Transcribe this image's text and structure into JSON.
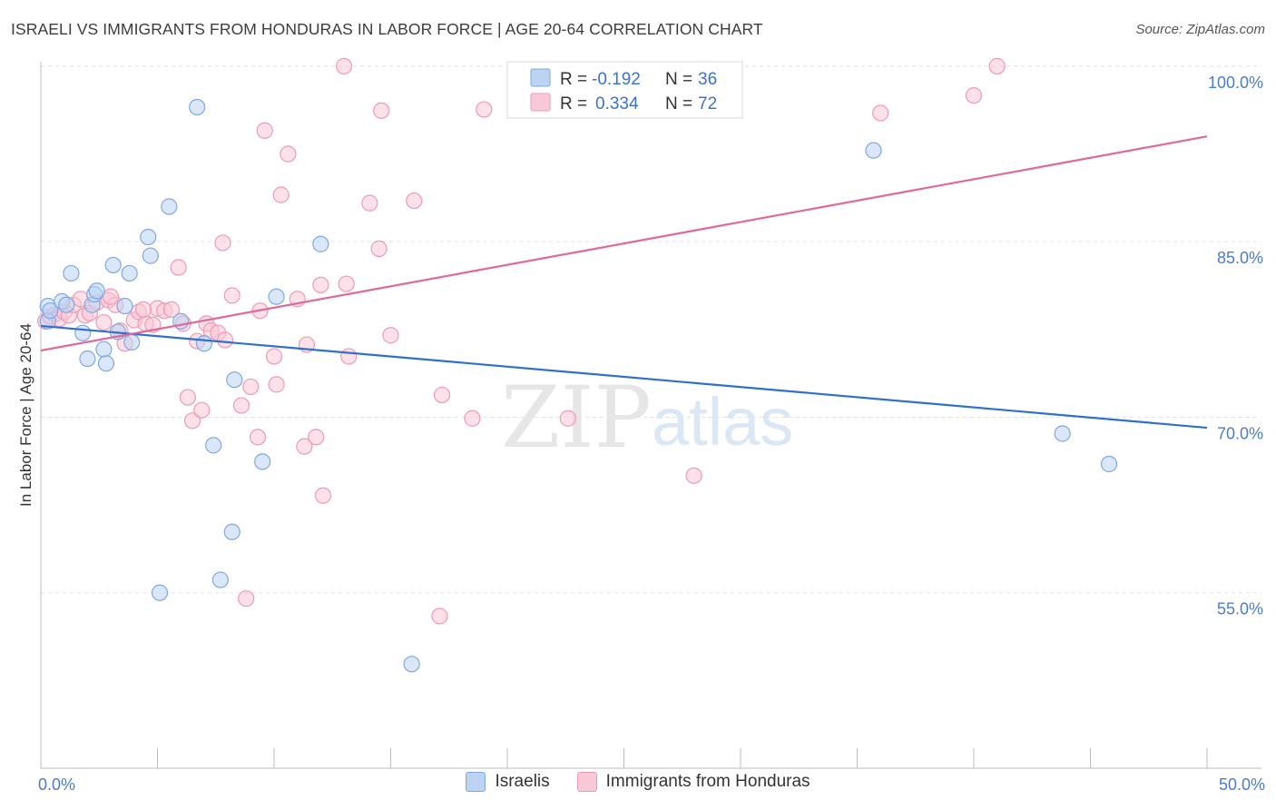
{
  "header": {
    "title": "ISRAELI VS IMMIGRANTS FROM HONDURAS IN LABOR FORCE | AGE 20-64 CORRELATION CHART",
    "source": "Source: ZipAtlas.com"
  },
  "watermark": {
    "zip": "ZIP",
    "atlas": "atlas"
  },
  "colors": {
    "israelis_fill": "#bcd4f2",
    "israelis_stroke": "#7fa8e0",
    "israelis_line": "#2f6fce",
    "honduras_fill": "#f9c8d7",
    "honduras_stroke": "#ee9ab3",
    "honduras_line": "#e0699a",
    "tick_label": "#4b7bd0",
    "grid": "#e3e3e3"
  },
  "legend": {
    "rows": [
      {
        "r_label": "R =",
        "r_value": "-0.192",
        "n_label": "N =",
        "n_value": "36"
      },
      {
        "r_label": "R =",
        "r_value": "0.334",
        "n_label": "N =",
        "n_value": "72"
      }
    ]
  },
  "chart_data": {
    "type": "scatter",
    "title": "ISRAELI VS IMMIGRANTS FROM HONDURAS IN LABOR FORCE | AGE 20-64 CORRELATION CHART",
    "xlabel": "",
    "ylabel": "In Labor Force | Age 20-64",
    "xlim": [
      0,
      50
    ],
    "ylim": [
      40,
      101
    ],
    "x_tick_labels": [
      {
        "value": 0,
        "label": "0.0%"
      },
      {
        "value": 50,
        "label": "50.0%"
      }
    ],
    "y_tick_labels": [
      {
        "value": 100,
        "label": "100.0%"
      },
      {
        "value": 85,
        "label": "85.0%"
      },
      {
        "value": 70,
        "label": "70.0%"
      },
      {
        "value": 55,
        "label": "55.0%"
      }
    ],
    "grid": true,
    "legend_position": "bottom",
    "series": [
      {
        "name": "Israelis",
        "trend": {
          "x": [
            0,
            50
          ],
          "y": [
            77.8,
            69.1
          ]
        },
        "points": [
          [
            0.3,
            79.5
          ],
          [
            0.9,
            79.9
          ],
          [
            1.1,
            79.6
          ],
          [
            1.3,
            82.3
          ],
          [
            1.8,
            77.2
          ],
          [
            2.0,
            75.0
          ],
          [
            2.2,
            79.6
          ],
          [
            2.3,
            80.5
          ],
          [
            2.4,
            80.8
          ],
          [
            2.7,
            75.8
          ],
          [
            2.8,
            74.6
          ],
          [
            3.1,
            83.0
          ],
          [
            3.3,
            77.3
          ],
          [
            3.6,
            79.5
          ],
          [
            3.8,
            82.3
          ],
          [
            3.9,
            76.4
          ],
          [
            4.6,
            85.4
          ],
          [
            4.7,
            83.8
          ],
          [
            5.1,
            55.0
          ],
          [
            5.5,
            88.0
          ],
          [
            6.0,
            78.2
          ],
          [
            6.7,
            96.5
          ],
          [
            7.0,
            76.3
          ],
          [
            7.4,
            67.6
          ],
          [
            8.2,
            60.2
          ],
          [
            7.7,
            56.1
          ],
          [
            8.3,
            73.2
          ],
          [
            9.5,
            66.2
          ],
          [
            10.1,
            80.3
          ],
          [
            12.0,
            84.8
          ],
          [
            15.9,
            48.9
          ],
          [
            0.3,
            78.2
          ],
          [
            0.4,
            79.1
          ],
          [
            35.7,
            92.8
          ],
          [
            43.8,
            68.6
          ],
          [
            45.8,
            66.0
          ]
        ]
      },
      {
        "name": "Immigrants from Honduras",
        "trend": {
          "x": [
            0,
            50
          ],
          "y": [
            75.7,
            94.0
          ]
        },
        "points": [
          [
            0.2,
            78.2
          ],
          [
            0.4,
            78.6
          ],
          [
            0.6,
            78.8
          ],
          [
            0.8,
            78.4
          ],
          [
            1.0,
            79.0
          ],
          [
            1.2,
            78.7
          ],
          [
            1.4,
            79.6
          ],
          [
            1.7,
            80.1
          ],
          [
            1.9,
            78.7
          ],
          [
            2.1,
            78.9
          ],
          [
            2.4,
            79.8
          ],
          [
            2.7,
            78.1
          ],
          [
            2.9,
            80.0
          ],
          [
            3.2,
            79.6
          ],
          [
            3.4,
            77.4
          ],
          [
            3.6,
            76.3
          ],
          [
            4.0,
            78.3
          ],
          [
            4.2,
            79.0
          ],
          [
            4.5,
            78.0
          ],
          [
            4.8,
            77.9
          ],
          [
            5.0,
            79.3
          ],
          [
            5.3,
            79.1
          ],
          [
            5.6,
            79.2
          ],
          [
            5.9,
            82.8
          ],
          [
            6.1,
            78.0
          ],
          [
            6.3,
            71.7
          ],
          [
            6.5,
            69.7
          ],
          [
            6.7,
            76.5
          ],
          [
            6.9,
            70.6
          ],
          [
            7.1,
            78.0
          ],
          [
            7.3,
            77.4
          ],
          [
            7.6,
            77.2
          ],
          [
            7.8,
            84.9
          ],
          [
            7.9,
            76.6
          ],
          [
            8.2,
            80.4
          ],
          [
            8.6,
            71.0
          ],
          [
            8.8,
            54.5
          ],
          [
            9.0,
            72.6
          ],
          [
            9.3,
            68.3
          ],
          [
            9.4,
            79.1
          ],
          [
            9.6,
            94.5
          ],
          [
            10.0,
            75.2
          ],
          [
            10.1,
            72.8
          ],
          [
            10.3,
            89.0
          ],
          [
            10.6,
            92.5
          ],
          [
            11.0,
            80.1
          ],
          [
            11.3,
            67.5
          ],
          [
            11.4,
            76.2
          ],
          [
            11.8,
            68.3
          ],
          [
            12.0,
            81.3
          ],
          [
            12.1,
            63.3
          ],
          [
            13.0,
            100.0
          ],
          [
            13.1,
            81.4
          ],
          [
            13.2,
            75.2
          ],
          [
            14.1,
            88.3
          ],
          [
            14.5,
            84.4
          ],
          [
            14.6,
            96.2
          ],
          [
            15.0,
            77.0
          ],
          [
            16.0,
            88.5
          ],
          [
            17.1,
            53.0
          ],
          [
            17.2,
            71.9
          ],
          [
            18.5,
            69.9
          ],
          [
            19.0,
            96.3
          ],
          [
            22.6,
            69.9
          ],
          [
            25.0,
            98.0
          ],
          [
            26.0,
            98.5
          ],
          [
            28.0,
            65.0
          ],
          [
            36.0,
            96.0
          ],
          [
            40.0,
            97.5
          ],
          [
            41.0,
            100.0
          ],
          [
            3.0,
            80.3
          ],
          [
            4.4,
            79.2
          ]
        ]
      }
    ]
  }
}
